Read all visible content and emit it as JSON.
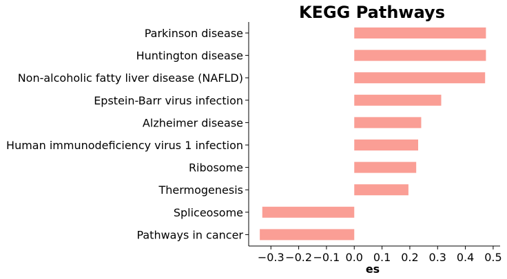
{
  "chart_data": {
    "type": "bar",
    "orientation": "horizontal",
    "title": "KEGG Pathways",
    "xlabel": "es",
    "ylabel": "",
    "xlim": [
      -0.38,
      0.525
    ],
    "xticks": [
      -0.3,
      -0.2,
      -0.1,
      0.0,
      0.1,
      0.2,
      0.3,
      0.4,
      0.5
    ],
    "xtick_labels": [
      "−0.3",
      "−0.2",
      "−0.1",
      "0.0",
      "0.1",
      "0.2",
      "0.3",
      "0.4",
      "0.5"
    ],
    "categories": [
      "Parkinson disease",
      "Huntington disease",
      "Non-alcoholic fatty liver disease (NAFLD)",
      "Epstein-Barr virus infection",
      "Alzheimer disease",
      "Human immunodeficiency virus 1 infection",
      "Ribosome",
      "Thermogenesis",
      "Spliceosome",
      "Pathways in cancer"
    ],
    "values": [
      0.474,
      0.474,
      0.471,
      0.313,
      0.241,
      0.23,
      0.223,
      0.195,
      -0.331,
      -0.34
    ],
    "bar_color": "#fa9e95",
    "grid": false,
    "legend": "none"
  }
}
